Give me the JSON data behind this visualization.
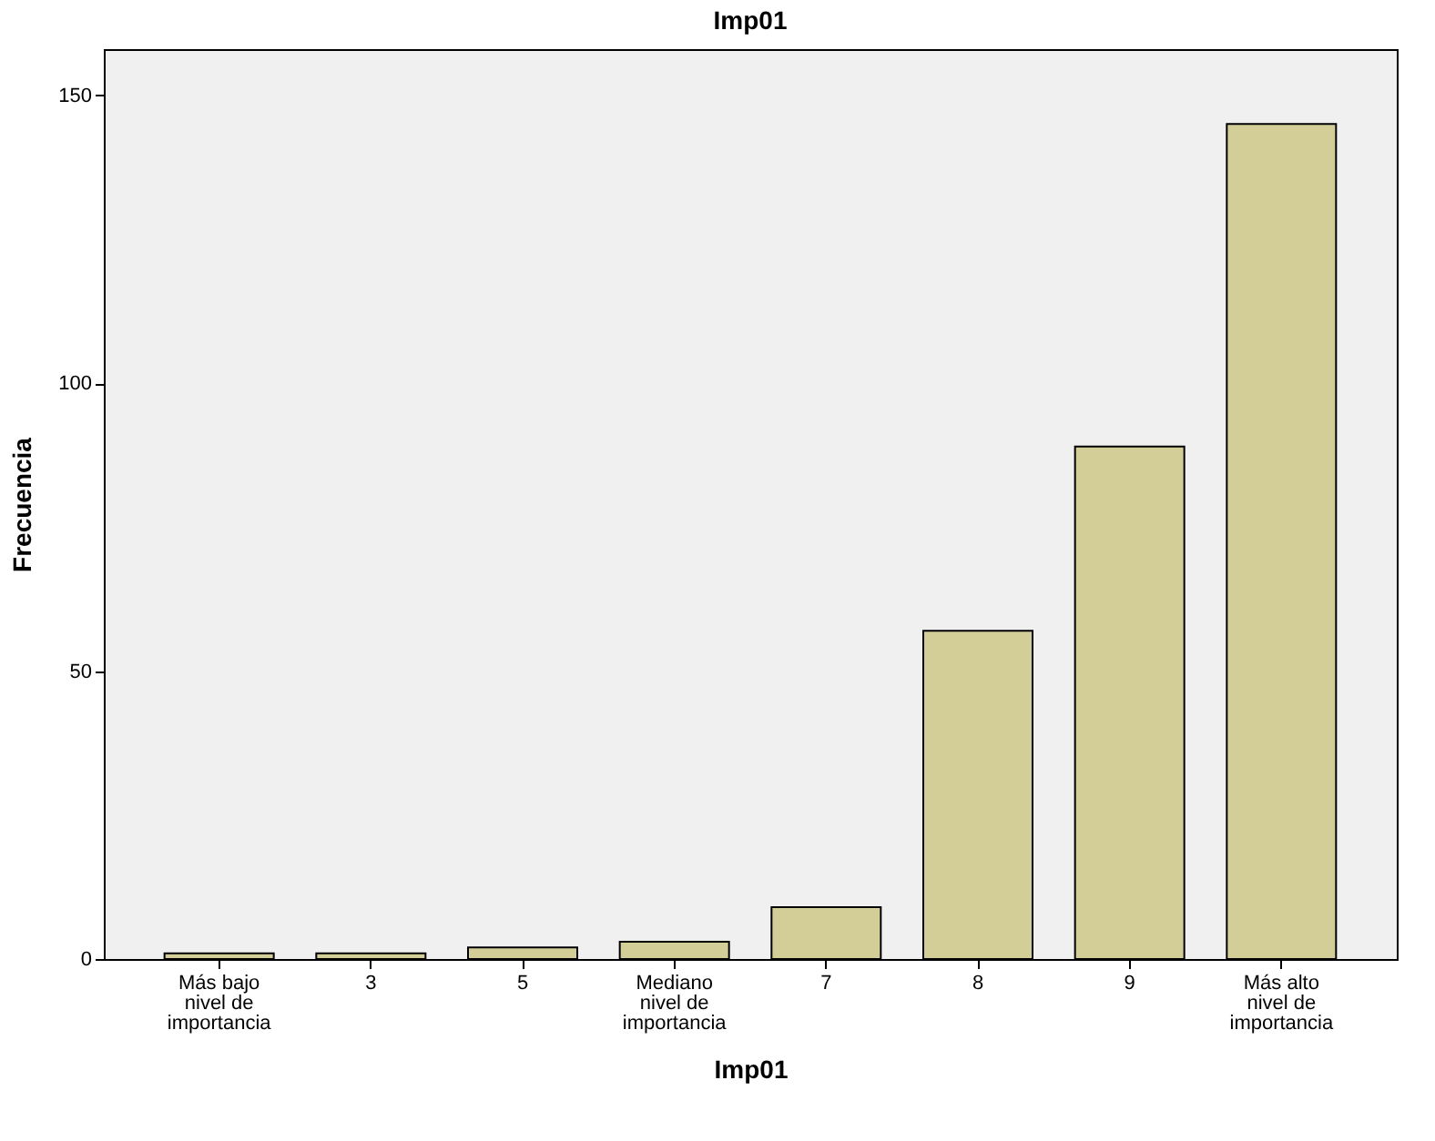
{
  "chart_data": {
    "type": "bar",
    "title": "Imp01",
    "xlabel": "Imp01",
    "ylabel": "Frecuencia",
    "categories": [
      "Más bajo nivel de importancia",
      "3",
      "5",
      "Mediano nivel de importancia",
      "7",
      "8",
      "9",
      "Más alto nivel de importancia"
    ],
    "values": [
      1,
      1,
      2,
      3,
      9,
      57,
      89,
      145
    ],
    "color": "#d3ce97",
    "ylim": [
      0,
      158
    ],
    "yticks": [
      0,
      50,
      100,
      150
    ],
    "grid": false
  }
}
